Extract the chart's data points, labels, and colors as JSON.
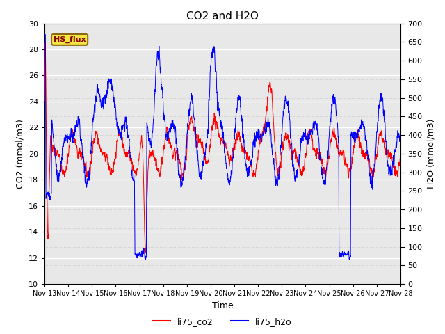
{
  "title": "CO2 and H2O",
  "xlabel": "Time",
  "ylabel_left": "CO2 (mmol/m3)",
  "ylabel_right": "H2O (mmol/m3)",
  "ylim_left": [
    10,
    30
  ],
  "ylim_right": [
    0,
    700
  ],
  "yticks_left": [
    10,
    12,
    14,
    16,
    18,
    20,
    22,
    24,
    26,
    28,
    30
  ],
  "yticks_right": [
    0,
    50,
    100,
    150,
    200,
    250,
    300,
    350,
    400,
    450,
    500,
    550,
    600,
    650,
    700
  ],
  "xtick_labels": [
    "Nov 13",
    "Nov 14",
    "Nov 15",
    "Nov 16",
    "Nov 17",
    "Nov 18",
    "Nov 19",
    "Nov 20",
    "Nov 21",
    "Nov 22",
    "Nov 23",
    "Nov 24",
    "Nov 25",
    "Nov 26",
    "Nov 27",
    "Nov 28"
  ],
  "legend_labels": [
    "li75_co2",
    "li75_h2o"
  ],
  "annotation_text": "HS_flux",
  "bg_color": "#e8e8e8",
  "line_color_co2": "red",
  "line_color_h2o": "blue",
  "title_fontsize": 11,
  "axis_label_fontsize": 9,
  "tick_fontsize": 8,
  "legend_fontsize": 9
}
